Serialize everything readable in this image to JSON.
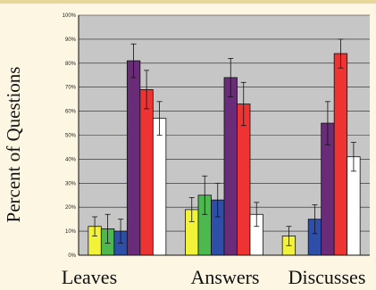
{
  "chart_data": {
    "type": "bar",
    "title": "",
    "xlabel": "",
    "ylabel": "Percent of Questions",
    "ylim": [
      0,
      100
    ],
    "y_ticks": [
      "0%",
      "10%",
      "20%",
      "30%",
      "40%",
      "50%",
      "60%",
      "70%",
      "80%",
      "90%",
      "100%"
    ],
    "y_tick_values": [
      0,
      10,
      20,
      30,
      40,
      50,
      60,
      70,
      80,
      90,
      100
    ],
    "categories": [
      "Leaves",
      "Answers",
      "Discusses"
    ],
    "grid": true,
    "legend": "none",
    "series": [
      {
        "color": "#f2f23a",
        "values": [
          12,
          19,
          8
        ],
        "error": [
          4,
          5,
          4
        ]
      },
      {
        "color": "#4db84d",
        "values": [
          11,
          25,
          null
        ],
        "error": [
          6,
          8,
          null
        ]
      },
      {
        "color": "#2e4fa8",
        "values": [
          10,
          23,
          15
        ],
        "error": [
          5,
          7,
          6
        ]
      },
      {
        "color": "#6a2c78",
        "values": [
          81,
          74,
          55
        ],
        "error": [
          7,
          8,
          9
        ]
      },
      {
        "color": "#ee3333",
        "values": [
          69,
          63,
          84
        ],
        "error": [
          8,
          9,
          6
        ]
      },
      {
        "color": "#ffffff",
        "values": [
          57,
          17,
          41
        ],
        "error": [
          7,
          5,
          6
        ]
      }
    ]
  }
}
